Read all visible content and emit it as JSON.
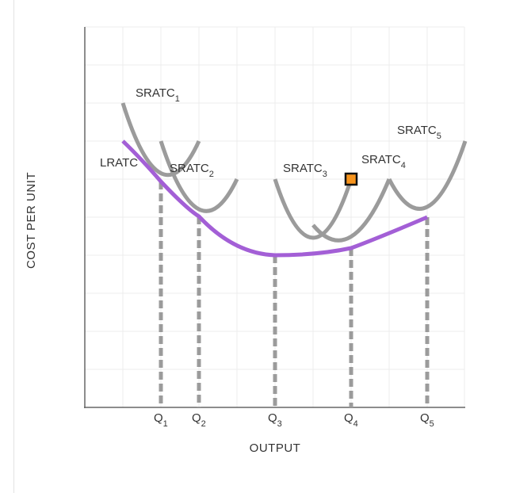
{
  "chart_data": {
    "type": "line",
    "xlabel": "OUTPUT",
    "ylabel": "COST PER UNIT",
    "grid": true,
    "curves": {
      "lratc": {
        "label": "LRATC",
        "color": "#a35fd6"
      },
      "sratc": [
        {
          "base": "SRATC",
          "sub": "1"
        },
        {
          "base": "SRATC",
          "sub": "2"
        },
        {
          "base": "SRATC",
          "sub": "3"
        },
        {
          "base": "SRATC",
          "sub": "4"
        },
        {
          "base": "SRATC",
          "sub": "5"
        }
      ]
    },
    "quantities": [
      {
        "base": "Q",
        "sub": "1"
      },
      {
        "base": "Q",
        "sub": "2"
      },
      {
        "base": "Q",
        "sub": "3"
      },
      {
        "base": "Q",
        "sub": "4"
      },
      {
        "base": "Q",
        "sub": "5"
      }
    ],
    "colors": {
      "sratc": "#9b9b9b",
      "lratc": "#a35fd6",
      "dropline": "#9b9b9b",
      "grid": "#ececec",
      "axis": "#666666",
      "handle_fill": "#f7941d",
      "handle_stroke": "#111111"
    }
  }
}
